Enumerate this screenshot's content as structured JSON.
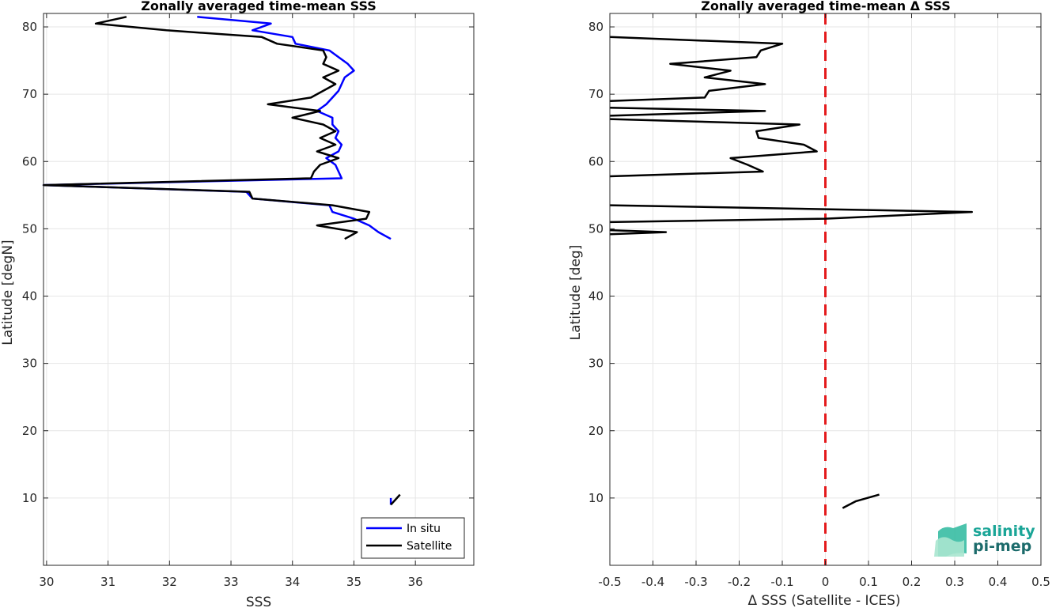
{
  "chart_data": [
    {
      "type": "line",
      "title": "Zonally averaged time-mean SSS",
      "xlabel": "SSS",
      "ylabel": "Latitude [degN]",
      "xlim": [
        29.95,
        36.95
      ],
      "ylim": [
        0,
        82
      ],
      "xticks": [
        30,
        31,
        32,
        33,
        34,
        35,
        36
      ],
      "yticks": [
        10,
        20,
        30,
        40,
        50,
        60,
        70,
        80
      ],
      "grid": true,
      "legend": "bottom-right",
      "series": [
        {
          "name": "In situ",
          "color": "#0000ff",
          "segments": [
            [
              [
                32.45,
                81.5
              ],
              [
                33.65,
                80.5
              ],
              [
                33.35,
                79.5
              ],
              [
                34.0,
                78.5
              ],
              [
                34.05,
                77.5
              ],
              [
                34.6,
                76.5
              ],
              [
                34.75,
                75.5
              ],
              [
                34.9,
                74.5
              ],
              [
                35.0,
                73.5
              ],
              [
                34.85,
                72.5
              ],
              [
                34.8,
                71.5
              ],
              [
                34.75,
                70.5
              ],
              [
                34.65,
                69.5
              ],
              [
                34.55,
                68.5
              ],
              [
                34.4,
                67.5
              ],
              [
                34.65,
                66.5
              ],
              [
                34.65,
                65.5
              ],
              [
                34.75,
                64.5
              ],
              [
                34.7,
                63.5
              ],
              [
                34.8,
                62.5
              ],
              [
                34.75,
                61.5
              ],
              [
                34.55,
                60.5
              ],
              [
                34.7,
                59.5
              ],
              [
                34.75,
                58.5
              ],
              [
                34.8,
                57.5
              ],
              [
                29.95,
                56.5
              ],
              [
                33.25,
                55.5
              ],
              [
                33.35,
                54.5
              ],
              [
                34.6,
                53.5
              ],
              [
                34.65,
                52.5
              ],
              [
                35.0,
                51.5
              ],
              [
                35.25,
                50.5
              ],
              [
                35.4,
                49.5
              ],
              [
                35.6,
                48.5
              ]
            ],
            [
              [
                35.6,
                10.0
              ],
              [
                35.6,
                9.0
              ]
            ]
          ]
        },
        {
          "name": "Satellite",
          "color": "#000000",
          "segments": [
            [
              [
                31.3,
                81.5
              ],
              [
                30.8,
                80.5
              ],
              [
                31.95,
                79.5
              ],
              [
                33.5,
                78.5
              ],
              [
                33.75,
                77.5
              ],
              [
                34.5,
                76.5
              ],
              [
                34.55,
                75.5
              ],
              [
                34.5,
                74.5
              ],
              [
                34.75,
                73.5
              ],
              [
                34.5,
                72.5
              ],
              [
                34.7,
                71.5
              ],
              [
                34.5,
                70.5
              ],
              [
                34.3,
                69.5
              ],
              [
                33.6,
                68.5
              ],
              [
                34.45,
                67.5
              ],
              [
                34.0,
                66.5
              ],
              [
                34.5,
                65.5
              ],
              [
                34.7,
                64.5
              ],
              [
                34.45,
                63.5
              ],
              [
                34.7,
                62.5
              ],
              [
                34.4,
                61.5
              ],
              [
                34.75,
                60.5
              ],
              [
                34.45,
                59.5
              ],
              [
                34.35,
                58.5
              ],
              [
                34.3,
                57.5
              ],
              [
                29.95,
                56.5
              ],
              [
                33.3,
                55.5
              ],
              [
                33.35,
                54.5
              ],
              [
                34.65,
                53.5
              ],
              [
                35.25,
                52.5
              ],
              [
                35.2,
                51.5
              ],
              [
                34.4,
                50.5
              ],
              [
                35.05,
                49.5
              ],
              [
                34.85,
                48.5
              ]
            ],
            [
              [
                35.75,
                10.5
              ],
              [
                35.65,
                9.5
              ],
              [
                35.6,
                9.0
              ]
            ]
          ]
        }
      ]
    },
    {
      "type": "line",
      "title": "Zonally averaged time-mean Δ SSS",
      "xlabel": "Δ SSS (Satellite - ICES)",
      "ylabel": "Latitude [deg]",
      "xlim": [
        -0.5,
        0.5
      ],
      "ylim": [
        0,
        82
      ],
      "xticks": [
        -0.5,
        -0.4,
        -0.3,
        -0.2,
        -0.1,
        0,
        0.1,
        0.2,
        0.3,
        0.4,
        0.5
      ],
      "yticks": [
        10,
        20,
        30,
        40,
        50,
        60,
        70,
        80
      ],
      "grid": true,
      "reference_line": {
        "x": 0,
        "color": "#e41a1c",
        "style": "dashed"
      },
      "series": [
        {
          "name": "",
          "color": "#000000",
          "segments": [
            [
              [
                -0.5,
                78.5
              ],
              [
                -0.1,
                77.5
              ],
              [
                -0.15,
                76.5
              ],
              [
                -0.16,
                75.5
              ],
              [
                -0.36,
                74.5
              ],
              [
                -0.22,
                73.5
              ],
              [
                -0.28,
                72.5
              ],
              [
                -0.14,
                71.5
              ],
              [
                -0.27,
                70.5
              ],
              [
                -0.28,
                69.5
              ],
              [
                -0.5,
                69.0
              ]
            ],
            [
              [
                -0.5,
                68.0
              ],
              [
                -0.14,
                67.5
              ],
              [
                -0.5,
                66.8
              ]
            ],
            [
              [
                -0.5,
                66.3
              ],
              [
                -0.06,
                65.5
              ],
              [
                -0.16,
                64.5
              ],
              [
                -0.155,
                63.5
              ],
              [
                -0.05,
                62.5
              ],
              [
                -0.02,
                61.5
              ],
              [
                -0.22,
                60.5
              ],
              [
                -0.18,
                59.5
              ],
              [
                -0.145,
                58.5
              ],
              [
                -0.5,
                57.8
              ]
            ],
            [
              [
                -0.5,
                53.5
              ],
              [
                0.34,
                52.5
              ],
              [
                0.0,
                51.5
              ],
              [
                -0.5,
                51.0
              ]
            ],
            [
              [
                -0.5,
                49.8
              ],
              [
                -0.37,
                49.5
              ],
              [
                -0.5,
                49.2
              ]
            ],
            [
              [
                0.04,
                8.5
              ],
              [
                0.07,
                9.5
              ],
              [
                0.125,
                10.5
              ]
            ]
          ]
        }
      ]
    }
  ],
  "legend": {
    "entries": [
      "In situ",
      "Satellite"
    ]
  },
  "logo": {
    "line1": "salinity",
    "line2": "pi-mep"
  }
}
